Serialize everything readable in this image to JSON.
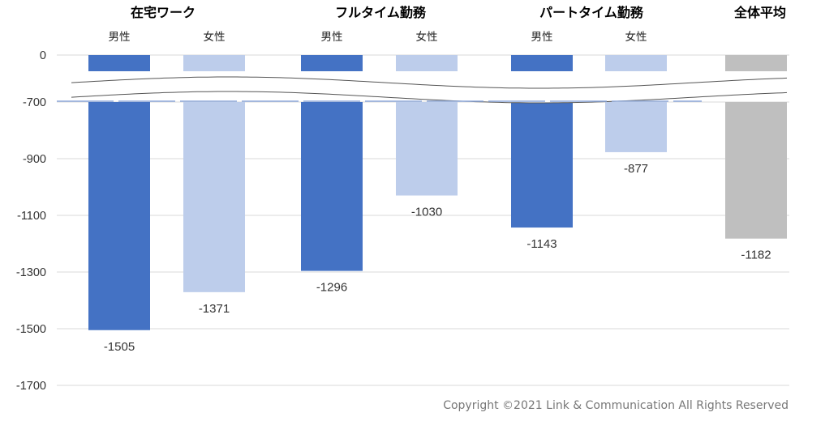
{
  "chart_data": {
    "type": "bar",
    "title": "",
    "xlabel": "",
    "ylabel": "",
    "ylim": [
      -1700,
      0
    ],
    "axis_break": [
      -700,
      0
    ],
    "yticks": [
      0,
      -700,
      -900,
      -1100,
      -1300,
      -1500,
      -1700
    ],
    "grid": true,
    "groups": [
      {
        "label": "在宅ワーク",
        "bars": [
          {
            "category": "男性",
            "value": -1505,
            "label": "-1505",
            "color": "#4472C4"
          },
          {
            "category": "女性",
            "value": -1371,
            "label": "-1371",
            "color": "#BDCDEB"
          }
        ]
      },
      {
        "label": "フルタイム勤務",
        "bars": [
          {
            "category": "男性",
            "value": -1296,
            "label": "-1296",
            "color": "#4472C4"
          },
          {
            "category": "女性",
            "value": -1030,
            "label": "-1030",
            "color": "#BDCDEB"
          }
        ]
      },
      {
        "label": "パートタイム勤務",
        "bars": [
          {
            "category": "男性",
            "value": -1143,
            "label": "-1143",
            "color": "#4472C4"
          },
          {
            "category": "女性",
            "value": -877,
            "label": "-877",
            "color": "#BDCDEB"
          }
        ]
      },
      {
        "label": "全体平均",
        "bars": [
          {
            "category": "",
            "value": -1182,
            "label": "-1182",
            "color": "#BFBFBF"
          }
        ]
      }
    ]
  },
  "footer": {
    "copyright": "Copyright ©2021 Link & Communication All Rights Reserved"
  }
}
